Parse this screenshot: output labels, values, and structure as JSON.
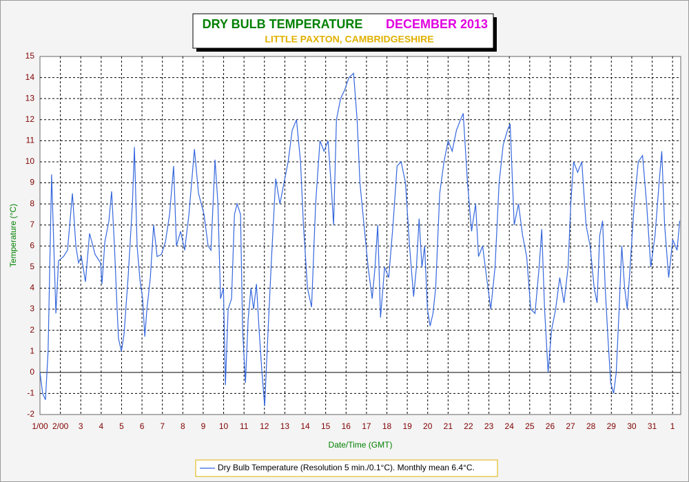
{
  "chart_data": {
    "type": "line",
    "title": "DRY BULB TEMPERATURE",
    "title_suffix": "DECEMBER 2013",
    "subtitle": "LITTLE PAXTON, CAMBRIDGESHIRE",
    "xlabel": "Date/Time (GMT)",
    "ylabel": "Temperature (°C)",
    "xlim": [
      0,
      31.4
    ],
    "ylim": [
      -2,
      15
    ],
    "yticks": [
      -2,
      -1,
      0,
      1,
      2,
      3,
      4,
      5,
      6,
      7,
      8,
      9,
      10,
      11,
      12,
      13,
      14,
      15
    ],
    "xticks": [
      {
        "value": 0,
        "label": "1/00"
      },
      {
        "value": 1,
        "label": "2/00"
      },
      {
        "value": 2,
        "label": "3"
      },
      {
        "value": 3,
        "label": "4"
      },
      {
        "value": 4,
        "label": "5"
      },
      {
        "value": 5,
        "label": "6"
      },
      {
        "value": 6,
        "label": "7"
      },
      {
        "value": 7,
        "label": "8"
      },
      {
        "value": 8,
        "label": "9"
      },
      {
        "value": 9,
        "label": "10"
      },
      {
        "value": 10,
        "label": "11"
      },
      {
        "value": 11,
        "label": "12"
      },
      {
        "value": 12,
        "label": "13"
      },
      {
        "value": 13,
        "label": "14"
      },
      {
        "value": 14,
        "label": "15"
      },
      {
        "value": 15,
        "label": "16"
      },
      {
        "value": 16,
        "label": "17"
      },
      {
        "value": 17,
        "label": "18"
      },
      {
        "value": 18,
        "label": "19"
      },
      {
        "value": 19,
        "label": "20"
      },
      {
        "value": 20,
        "label": "21"
      },
      {
        "value": 21,
        "label": "22"
      },
      {
        "value": 22,
        "label": "23"
      },
      {
        "value": 23,
        "label": "24"
      },
      {
        "value": 24,
        "label": "25"
      },
      {
        "value": 25,
        "label": "26"
      },
      {
        "value": 26,
        "label": "27"
      },
      {
        "value": 27,
        "label": "28"
      },
      {
        "value": 28,
        "label": "29"
      },
      {
        "value": 29,
        "label": "30"
      },
      {
        "value": 30,
        "label": "31"
      },
      {
        "value": 31,
        "label": "1"
      }
    ],
    "grid": true,
    "series": [
      {
        "name": "Dry Bulb Temperature (Resolution 5 min./0.1°C). Monthly mean 6.4°C.",
        "color": "#3366dd",
        "x": [
          0,
          0.13,
          0.27,
          0.4,
          0.5,
          0.57,
          0.68,
          0.78,
          0.91,
          1.15,
          1.35,
          1.59,
          1.76,
          1.89,
          2.03,
          2.23,
          2.43,
          2.7,
          2.97,
          3.04,
          3.18,
          3.38,
          3.51,
          3.65,
          3.78,
          3.85,
          3.99,
          4.12,
          4.32,
          4.53,
          4.63,
          4.76,
          4.9,
          5.03,
          5.14,
          5.24,
          5.41,
          5.57,
          5.74,
          5.95,
          6.15,
          6.35,
          6.55,
          6.69,
          6.89,
          7.09,
          7.3,
          7.57,
          7.77,
          8.04,
          8.24,
          8.38,
          8.58,
          8.72,
          8.85,
          8.99,
          9.09,
          9.22,
          9.39,
          9.53,
          9.66,
          9.83,
          9.93,
          10.07,
          10.2,
          10.34,
          10.47,
          10.61,
          10.74,
          10.88,
          11.01,
          11.18,
          11.35,
          11.55,
          11.76,
          11.96,
          12.16,
          12.36,
          12.57,
          12.77,
          12.91,
          13.11,
          13.31,
          13.51,
          13.72,
          13.92,
          14.12,
          14.26,
          14.39,
          14.53,
          14.73,
          14.93,
          15.14,
          15.37,
          15.54,
          15.68,
          15.88,
          16.08,
          16.28,
          16.42,
          16.55,
          16.69,
          16.89,
          17.09,
          17.3,
          17.5,
          17.7,
          17.91,
          18.11,
          18.31,
          18.45,
          18.58,
          18.72,
          18.85,
          18.99,
          19.12,
          19.26,
          19.39,
          19.59,
          19.8,
          20,
          20.2,
          20.41,
          20.61,
          20.74,
          20.95,
          21.15,
          21.35,
          21.49,
          21.69,
          21.89,
          22.09,
          22.3,
          22.5,
          22.7,
          22.91,
          23.04,
          23.24,
          23.45,
          23.65,
          23.85,
          24.05,
          24.26,
          24.46,
          24.59,
          24.73,
          24.9,
          25.07,
          25.27,
          25.47,
          25.68,
          25.88,
          26.01,
          26.15,
          26.35,
          26.55,
          26.76,
          26.96,
          27.16,
          27.3,
          27.43,
          27.57,
          27.7,
          27.84,
          27.97,
          28.11,
          28.24,
          28.38,
          28.51,
          28.65,
          28.78,
          28.92,
          29.12,
          29.32,
          29.53,
          29.73,
          29.93,
          30.14,
          30.34,
          30.47,
          30.61,
          30.81,
          31.01,
          31.22,
          31.35
        ],
        "values": [
          0,
          -1,
          -1.3,
          1,
          6,
          9.4,
          6,
          2.8,
          5.3,
          5.5,
          5.8,
          8.5,
          6,
          5.2,
          5.5,
          4.3,
          6.6,
          5.6,
          5.2,
          4.2,
          6.2,
          7.2,
          8.6,
          6,
          3,
          1.6,
          1,
          1.8,
          4.5,
          8,
          10.7,
          6,
          4.4,
          3.5,
          1.7,
          3,
          4.5,
          7,
          5.5,
          5.6,
          6.2,
          7.5,
          9.8,
          6,
          6.7,
          5.8,
          7.5,
          10.6,
          8.5,
          7.5,
          6,
          5.8,
          10.1,
          8,
          3.5,
          4,
          -0.6,
          3,
          3.5,
          7.5,
          8,
          7.5,
          2,
          -0.5,
          2.5,
          4,
          3,
          4.2,
          2,
          0,
          -1.6,
          2,
          5.5,
          9.2,
          8,
          9,
          10,
          11.5,
          12,
          10,
          7,
          4,
          3.1,
          8,
          11,
          10.5,
          11,
          9,
          7,
          12,
          13,
          13.4,
          14,
          14.2,
          12,
          9,
          7,
          5,
          3.5,
          5,
          7,
          2.6,
          5,
          4.5,
          7,
          9.8,
          10,
          9,
          6,
          3.6,
          5,
          7.3,
          5,
          6,
          3,
          2.2,
          2.8,
          4,
          8.5,
          10,
          11,
          10.5,
          11.5,
          12,
          12.3,
          9,
          6.7,
          8,
          5.5,
          6,
          4.5,
          3,
          5,
          9,
          10.8,
          11.5,
          11.8,
          7,
          8,
          6.5,
          5.5,
          3,
          2.8,
          5,
          6.8,
          3,
          0,
          2,
          3,
          4.5,
          3.3,
          5,
          8,
          10,
          9.5,
          10,
          7,
          6,
          4,
          3.3,
          6.5,
          7.2,
          4,
          1.5,
          -0.5,
          -1,
          0,
          3,
          6,
          4,
          3,
          5,
          8,
          10,
          10.3,
          8,
          5,
          6.5,
          9,
          10.5,
          7,
          4.5,
          6.3,
          5.8,
          7.2
        ]
      }
    ]
  }
}
